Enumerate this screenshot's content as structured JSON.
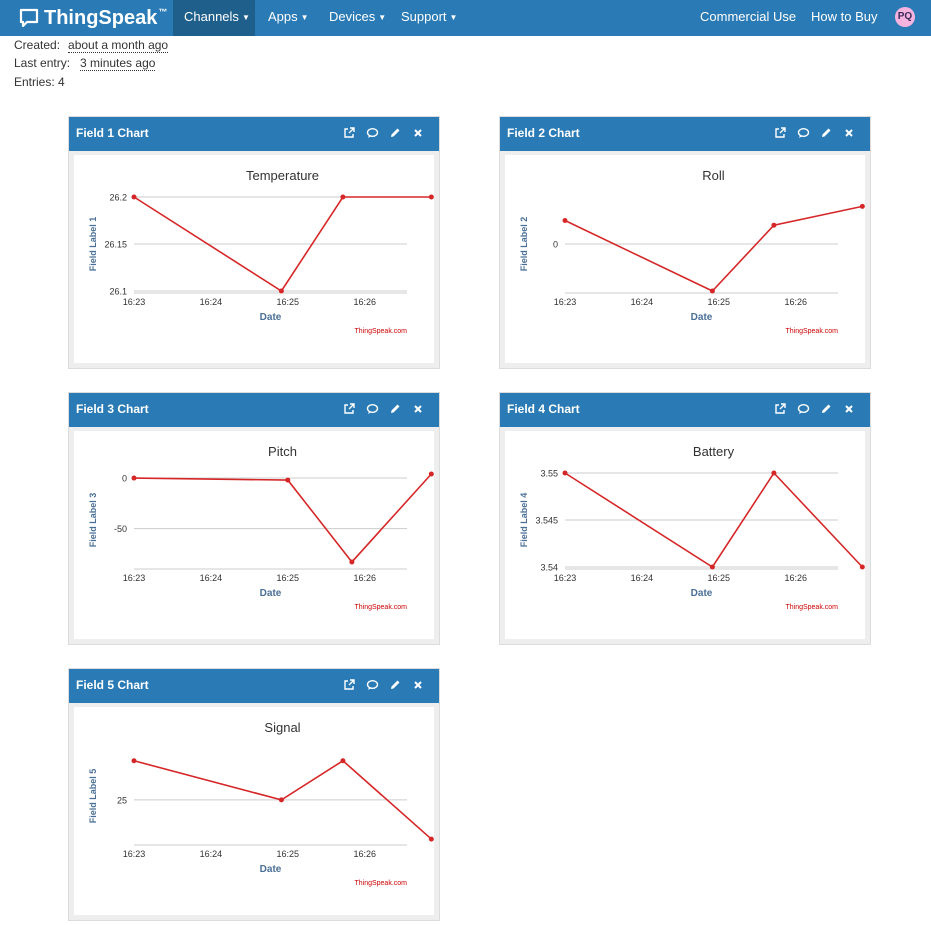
{
  "nav": {
    "brand": "ThingSpeak",
    "brand_tm": "™",
    "items": [
      {
        "label": "Channels",
        "active": true
      },
      {
        "label": "Apps"
      },
      {
        "label": "Devices"
      },
      {
        "label": "Support"
      }
    ],
    "commercial": "Commercial Use",
    "how_to_buy": "How to Buy",
    "avatar": "PQ"
  },
  "meta": {
    "created_label": "Created:",
    "created_value": "about a month ago",
    "last_entry_label": "Last entry:",
    "last_entry_value": "3 minutes ago",
    "entries": "Entries: 4"
  },
  "colors": {
    "navbar": "#2a7ab5",
    "line": "#d62728"
  },
  "icons": [
    "popout-icon",
    "comment-icon",
    "pencil-icon",
    "close-icon"
  ],
  "cards": [
    {
      "title": "Field 1 Chart"
    },
    {
      "title": "Field 2 Chart"
    },
    {
      "title": "Field 3 Chart"
    },
    {
      "title": "Field 4 Chart"
    },
    {
      "title": "Field 5 Chart"
    }
  ],
  "chart_data": [
    {
      "type": "line",
      "title": "Temperature",
      "xlabel": "Date",
      "ylabel": "Field Label 1",
      "credit": "ThingSpeak.com",
      "x": [
        "16:23",
        "16:24:55",
        "16:25:43",
        "16:26:52"
      ],
      "x_ticks": [
        "16:23",
        "16:24",
        "16:25",
        "16:26"
      ],
      "values": [
        26.2,
        26.1,
        26.2,
        26.2
      ],
      "y_ticks": [
        "26.2",
        "26.15",
        "26.1"
      ],
      "ylim": [
        26.1,
        26.2
      ]
    },
    {
      "type": "line",
      "title": "Roll",
      "xlabel": "Date",
      "ylabel": "Field Label 2",
      "credit": "ThingSpeak.com",
      "x": [
        "16:23",
        "16:24:55",
        "16:25:43",
        "16:26:52"
      ],
      "x_ticks": [
        "16:23",
        "16:24",
        "16:25",
        "16:26"
      ],
      "values": [
        0.5,
        -1,
        0.4,
        0.8
      ],
      "y_ticks": [
        "0"
      ],
      "ylim": [
        -1,
        1
      ]
    },
    {
      "type": "line",
      "title": "Pitch",
      "xlabel": "Date",
      "ylabel": "Field Label 3",
      "credit": "ThingSpeak.com",
      "x": [
        "16:23",
        "16:25",
        "16:25:50",
        "16:26:52"
      ],
      "x_ticks": [
        "16:23",
        "16:24",
        "16:25",
        "16:26"
      ],
      "values": [
        0,
        -2,
        -83,
        4
      ],
      "y_ticks": [
        "0",
        "-50"
      ],
      "ylim": [
        -88,
        5
      ]
    },
    {
      "type": "line",
      "title": "Battery",
      "xlabel": "Date",
      "ylabel": "Field Label 4",
      "credit": "ThingSpeak.com",
      "x": [
        "16:23",
        "16:24:55",
        "16:25:43",
        "16:26:52"
      ],
      "x_ticks": [
        "16:23",
        "16:24",
        "16:25",
        "16:26"
      ],
      "values": [
        3.55,
        3.54,
        3.55,
        3.54
      ],
      "y_ticks": [
        "3.55",
        "3.545",
        "3.54"
      ],
      "ylim": [
        3.54,
        3.55
      ]
    },
    {
      "type": "line",
      "title": "Signal",
      "xlabel": "Date",
      "ylabel": "Field Label 5",
      "credit": "ThingSpeak.com",
      "x": [
        "16:23",
        "16:24:55",
        "16:25:43",
        "16:26:52"
      ],
      "x_ticks": [
        "16:23",
        "16:24",
        "16:25",
        "16:26"
      ],
      "values": [
        26,
        25,
        26,
        24
      ],
      "y_ticks": [
        "25"
      ],
      "ylim": [
        23.9,
        26.3
      ]
    }
  ]
}
